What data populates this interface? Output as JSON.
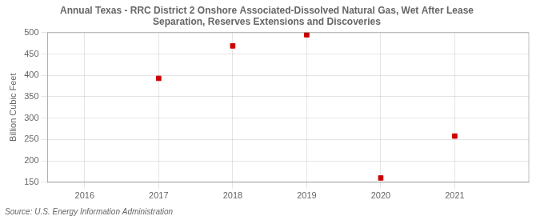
{
  "chart_data": {
    "type": "scatter",
    "title": "Annual Texas - RRC District 2 Onshore Associated-Dissolved Natural Gas, Wet After Lease\nSeparation, Reserves Extensions and Discoveries",
    "ylabel": "Billion Cubic Feet",
    "annotation": "Source: U.S. Energy Information Administration",
    "x": [
      2017,
      2018,
      2019,
      2020,
      2021
    ],
    "values": [
      393.0,
      469.0,
      495.0,
      160.0,
      258.0
    ],
    "color": "#cc0000",
    "marker": "square",
    "xlim": [
      2015.5,
      2022.0
    ],
    "xticks": [
      2016,
      2017,
      2018,
      2019,
      2020,
      2021
    ],
    "ylim": [
      150,
      500
    ],
    "yticks": [
      150,
      200,
      250,
      300,
      350,
      400,
      450,
      500
    ],
    "grid": true
  }
}
